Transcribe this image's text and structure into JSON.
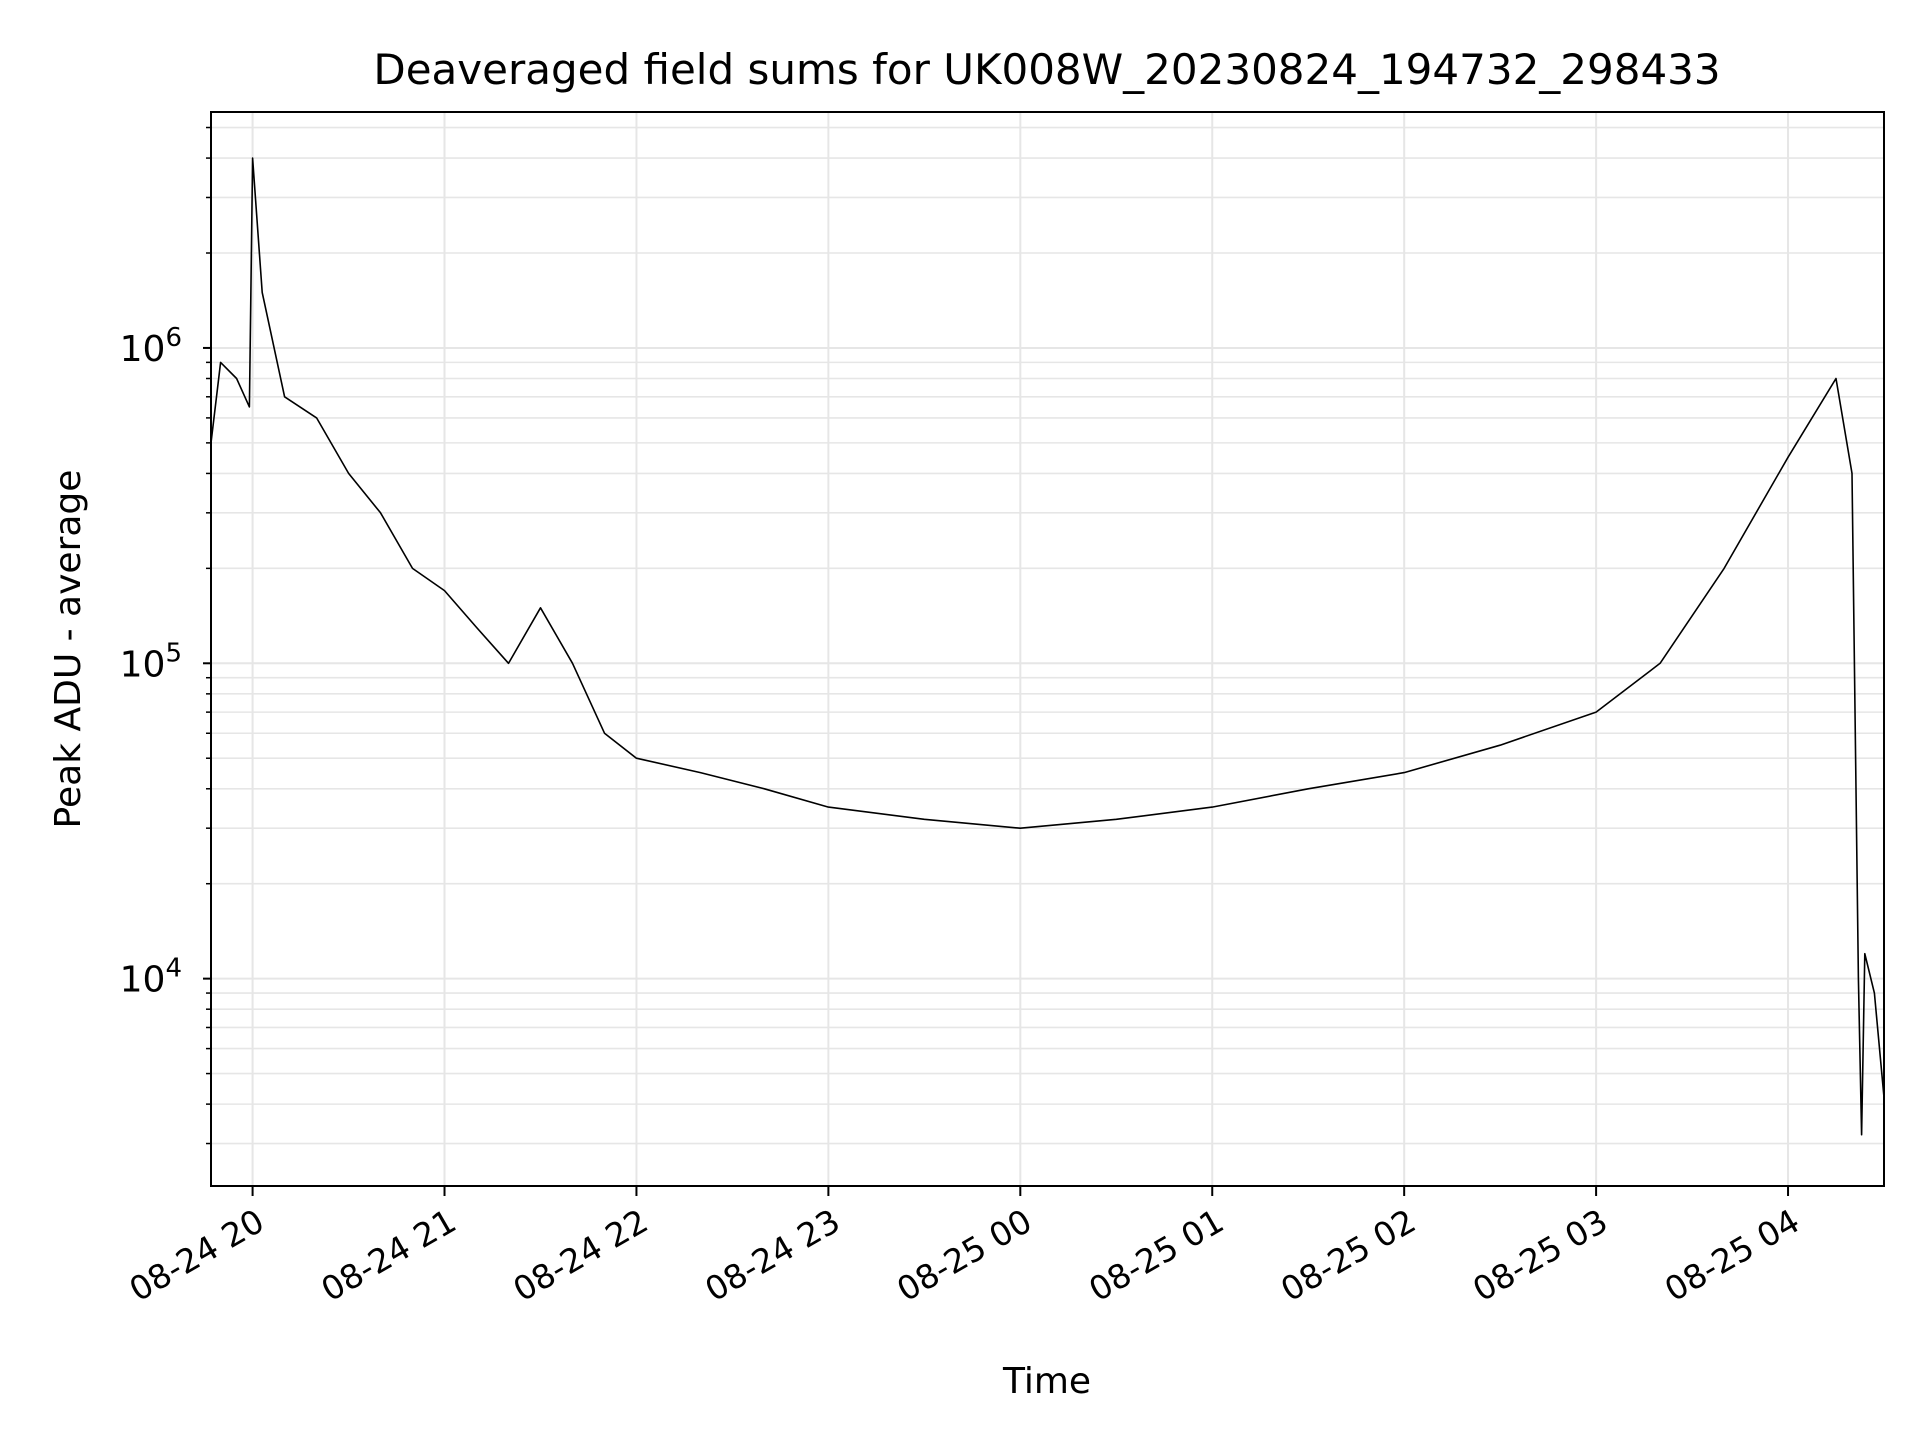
{
  "chart_data": {
    "type": "line",
    "title": "Deaveraged field sums for UK008W_20230824_194732_298433",
    "xlabel": "Time",
    "ylabel": "Peak ADU - average",
    "x_range": [
      "2023-08-24 19:47",
      "2023-08-25 04:30"
    ],
    "ylim": [
      2200,
      5600000
    ],
    "y_scale": "log",
    "grid": true,
    "line_color": "#000000",
    "grid_color": "#e6e6e6",
    "x_ticks": [
      {
        "time": "2023-08-24 20:00",
        "label": "08-24 20"
      },
      {
        "time": "2023-08-24 21:00",
        "label": "08-24 21"
      },
      {
        "time": "2023-08-24 22:00",
        "label": "08-24 22"
      },
      {
        "time": "2023-08-24 23:00",
        "label": "08-24 23"
      },
      {
        "time": "2023-08-25 00:00",
        "label": "08-25 00"
      },
      {
        "time": "2023-08-25 01:00",
        "label": "08-25 01"
      },
      {
        "time": "2023-08-25 02:00",
        "label": "08-25 02"
      },
      {
        "time": "2023-08-25 03:00",
        "label": "08-25 03"
      },
      {
        "time": "2023-08-25 04:00",
        "label": "08-25 04"
      }
    ],
    "y_ticks": [
      {
        "value": 10000,
        "mantissa": "10",
        "exponent": "4"
      },
      {
        "value": 100000,
        "mantissa": "10",
        "exponent": "5"
      },
      {
        "value": 1000000,
        "mantissa": "10",
        "exponent": "6"
      }
    ],
    "series": [
      {
        "values": [
          {
            "x": "2023-08-24 19:47",
            "y": 500000
          },
          {
            "x": "2023-08-24 19:50",
            "y": 900000
          },
          {
            "x": "2023-08-24 19:55",
            "y": 800000
          },
          {
            "x": "2023-08-24 19:59",
            "y": 650000
          },
          {
            "x": "2023-08-24 20:00",
            "y": 4000000
          },
          {
            "x": "2023-08-24 20:03",
            "y": 1500000
          },
          {
            "x": "2023-08-24 20:10",
            "y": 700000
          },
          {
            "x": "2023-08-24 20:20",
            "y": 600000
          },
          {
            "x": "2023-08-24 20:30",
            "y": 400000
          },
          {
            "x": "2023-08-24 20:40",
            "y": 300000
          },
          {
            "x": "2023-08-24 20:50",
            "y": 200000
          },
          {
            "x": "2023-08-24 21:00",
            "y": 170000
          },
          {
            "x": "2023-08-24 21:10",
            "y": 130000
          },
          {
            "x": "2023-08-24 21:20",
            "y": 100000
          },
          {
            "x": "2023-08-24 21:30",
            "y": 150000
          },
          {
            "x": "2023-08-24 21:40",
            "y": 100000
          },
          {
            "x": "2023-08-24 21:50",
            "y": 60000
          },
          {
            "x": "2023-08-24 22:00",
            "y": 50000
          },
          {
            "x": "2023-08-24 22:20",
            "y": 45000
          },
          {
            "x": "2023-08-24 22:40",
            "y": 40000
          },
          {
            "x": "2023-08-24 23:00",
            "y": 35000
          },
          {
            "x": "2023-08-24 23:30",
            "y": 32000
          },
          {
            "x": "2023-08-25 00:00",
            "y": 30000
          },
          {
            "x": "2023-08-25 00:30",
            "y": 32000
          },
          {
            "x": "2023-08-25 01:00",
            "y": 35000
          },
          {
            "x": "2023-08-25 01:30",
            "y": 40000
          },
          {
            "x": "2023-08-25 02:00",
            "y": 45000
          },
          {
            "x": "2023-08-25 02:30",
            "y": 55000
          },
          {
            "x": "2023-08-25 03:00",
            "y": 70000
          },
          {
            "x": "2023-08-25 03:20",
            "y": 100000
          },
          {
            "x": "2023-08-25 03:40",
            "y": 200000
          },
          {
            "x": "2023-08-25 04:00",
            "y": 450000
          },
          {
            "x": "2023-08-25 04:15",
            "y": 800000
          },
          {
            "x": "2023-08-25 04:20",
            "y": 400000
          },
          {
            "x": "2023-08-25 04:22",
            "y": 10000
          },
          {
            "x": "2023-08-25 04:23",
            "y": 3200
          },
          {
            "x": "2023-08-25 04:24",
            "y": 12000
          },
          {
            "x": "2023-08-25 04:27",
            "y": 9000
          },
          {
            "x": "2023-08-25 04:30",
            "y": 4200
          }
        ]
      }
    ]
  }
}
